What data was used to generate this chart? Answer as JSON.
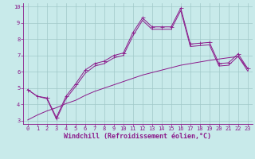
{
  "xlabel": "Windchill (Refroidissement éolien,°C)",
  "xlim": [
    -0.5,
    23.5
  ],
  "ylim": [
    2.8,
    10.2
  ],
  "xticks": [
    0,
    1,
    2,
    3,
    4,
    5,
    6,
    7,
    8,
    9,
    10,
    11,
    12,
    13,
    14,
    15,
    16,
    17,
    18,
    19,
    20,
    21,
    22,
    23
  ],
  "yticks": [
    3,
    4,
    5,
    6,
    7,
    8,
    9,
    10
  ],
  "background_color": "#c8eaea",
  "grid_color": "#a0c8c8",
  "line_color": "#8b1a8b",
  "series1_x": [
    0,
    1,
    2,
    3,
    4,
    5,
    6,
    7,
    8,
    9,
    10,
    11,
    12,
    13,
    14,
    15,
    16,
    17,
    18,
    19,
    20,
    21,
    22,
    23
  ],
  "series1_y": [
    4.9,
    4.5,
    4.4,
    3.2,
    4.5,
    5.25,
    6.1,
    6.5,
    6.65,
    7.0,
    7.15,
    8.4,
    9.3,
    8.75,
    8.75,
    8.75,
    9.9,
    7.7,
    7.75,
    7.8,
    6.5,
    6.55,
    7.1,
    6.2
  ],
  "series2_x": [
    0,
    1,
    2,
    3,
    4,
    5,
    6,
    7,
    8,
    9,
    10,
    11,
    12,
    13,
    14,
    15,
    16,
    17,
    18,
    19,
    20,
    21,
    22,
    23
  ],
  "series2_y": [
    4.9,
    4.5,
    4.35,
    3.1,
    4.35,
    5.1,
    5.9,
    6.35,
    6.5,
    6.85,
    7.0,
    8.2,
    9.15,
    8.6,
    8.6,
    8.6,
    9.75,
    7.55,
    7.6,
    7.65,
    6.35,
    6.4,
    6.95,
    6.05
  ],
  "series3_x": [
    0,
    1,
    2,
    3,
    4,
    5,
    6,
    7,
    8,
    9,
    10,
    11,
    12,
    13,
    14,
    15,
    16,
    17,
    18,
    19,
    20,
    21,
    22,
    23
  ],
  "series3_y": [
    3.05,
    3.35,
    3.6,
    3.8,
    4.05,
    4.25,
    4.55,
    4.8,
    5.0,
    5.2,
    5.4,
    5.6,
    5.8,
    5.95,
    6.1,
    6.25,
    6.4,
    6.5,
    6.6,
    6.7,
    6.78,
    6.86,
    6.93,
    6.2
  ],
  "tick_fontsize": 5.0,
  "xlabel_fontsize": 6.0,
  "marker_size": 2.0,
  "line_width": 0.7
}
